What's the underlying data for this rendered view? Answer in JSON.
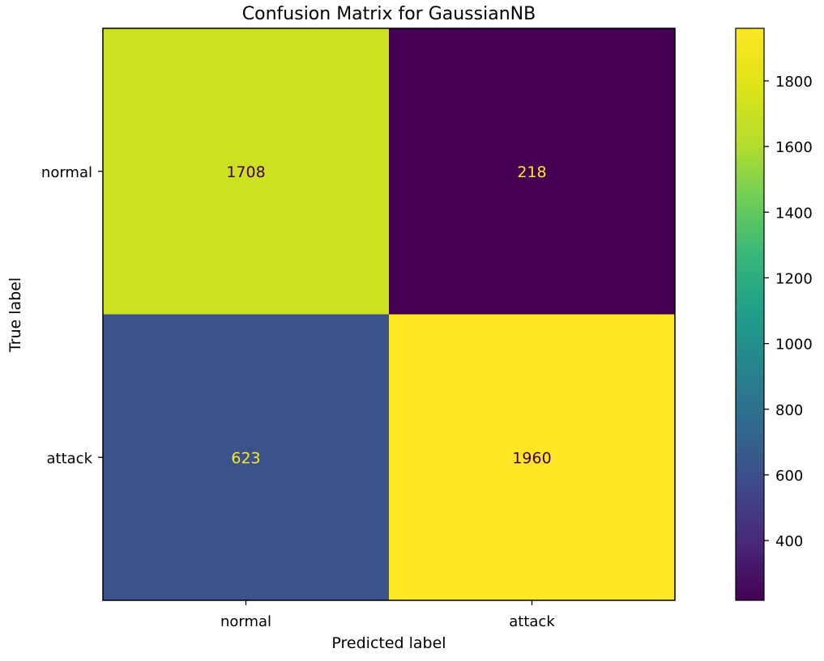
{
  "chart_data": {
    "type": "heatmap",
    "title": "Confusion Matrix for GaussianNB",
    "xlabel": "Predicted label",
    "ylabel": "True label",
    "x_categories": [
      "normal",
      "attack"
    ],
    "y_categories": [
      "normal",
      "attack"
    ],
    "values": [
      [
        1708,
        218
      ],
      [
        623,
        1960
      ]
    ],
    "colormap": "viridis",
    "colorbar": {
      "range": [
        218,
        1960
      ],
      "ticks": [
        400,
        600,
        800,
        1000,
        1200,
        1400,
        1600,
        1800
      ]
    },
    "colors": {
      "light_text": "#fde725",
      "dark_text": "#440154"
    }
  }
}
